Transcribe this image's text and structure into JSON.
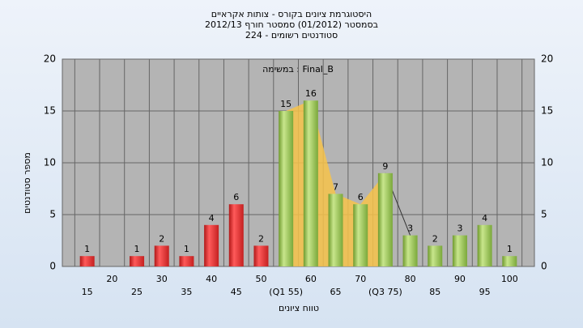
{
  "chart_data": {
    "type": "bar",
    "title": [
      "היסטוגרמת ציונים בקורס - צותות אקראיים",
      "בסמסטר  (01/2012)  סמסטר חורף 2012/13",
      "סטודנטים רשומים - 224"
    ],
    "annotation": "במשימה : Final_B",
    "x_label": "טווח ציונים",
    "y_label": "מספר סטודנטים",
    "categories": [
      "15",
      "20",
      "25",
      "30",
      "35",
      "40",
      "45",
      "50",
      "(Q1 55)",
      "60",
      "65",
      "70",
      "(Q3 75)",
      "80",
      "85",
      "90",
      "95",
      "100"
    ],
    "values": [
      1,
      null,
      1,
      2,
      1,
      4,
      6,
      2,
      15,
      16,
      7,
      6,
      9,
      3,
      2,
      3,
      4,
      1
    ],
    "colors": [
      "red",
      "red",
      "red",
      "red",
      "red",
      "red",
      "red",
      "red",
      "green",
      "green",
      "green",
      "green",
      "green",
      "green",
      "green",
      "green",
      "green",
      "green"
    ],
    "ylim": [
      0,
      20
    ],
    "yticks": [
      0,
      5,
      10,
      15,
      20
    ],
    "grid": true
  }
}
